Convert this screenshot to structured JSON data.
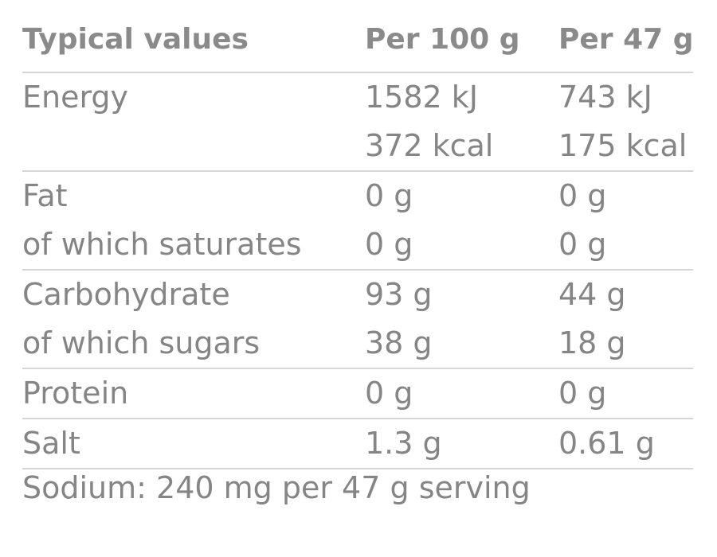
{
  "header": {
    "col1": "Typical values",
    "col2": "Per 100 g",
    "col3": "Per 47 g"
  },
  "rows": [
    {
      "label": "Energy",
      "per100": "1582 kJ",
      "perServing": "743 kJ"
    },
    {
      "label": "",
      "per100": "372 kcal",
      "perServing": "175 kcal"
    },
    {
      "label": "Fat",
      "per100": "0 g",
      "perServing": "0 g"
    },
    {
      "label": "of which saturates",
      "per100": "0 g",
      "perServing": "0 g"
    },
    {
      "label": "Carbohydrate",
      "per100": "93 g",
      "perServing": "44 g"
    },
    {
      "label": "of which sugars",
      "per100": "38 g",
      "perServing": "18 g"
    },
    {
      "label": "Protein",
      "per100": "0 g",
      "perServing": "0 g"
    },
    {
      "label": "Salt",
      "per100": "1.3 g",
      "perServing": "0.61 g"
    }
  ],
  "footnote": "Sodium: 240 mg per 47 g serving",
  "colors": {
    "text": "#858585",
    "rule": "#d6d6d6"
  }
}
